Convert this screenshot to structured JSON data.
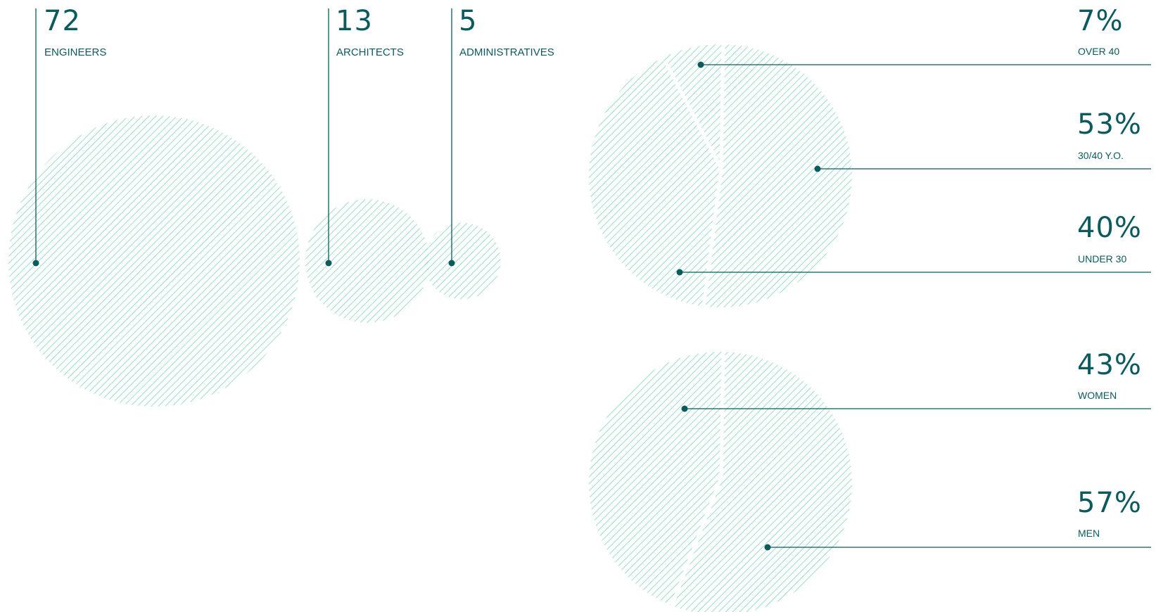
{
  "colors": {
    "ink": "#0b5a5e",
    "hatch": "#7fd6b4"
  },
  "chart_data": [
    {
      "type": "bubble",
      "values": [
        72,
        13,
        5
      ],
      "categories": [
        "ENGINEERS",
        "ARCHITECTS",
        "ADMINISTRATIVES"
      ],
      "value_labels": [
        "72",
        "13",
        "5"
      ]
    },
    {
      "type": "pie",
      "values": [
        7,
        53,
        40
      ],
      "categories": [
        "OVER 40",
        "30/40 Y.O.",
        "UNDER 30"
      ],
      "value_labels": [
        "7%",
        "53%",
        "40%"
      ]
    },
    {
      "type": "pie",
      "values": [
        43,
        57
      ],
      "categories": [
        "WOMEN",
        "MEN"
      ],
      "value_labels": [
        "43%",
        "57%"
      ]
    }
  ]
}
